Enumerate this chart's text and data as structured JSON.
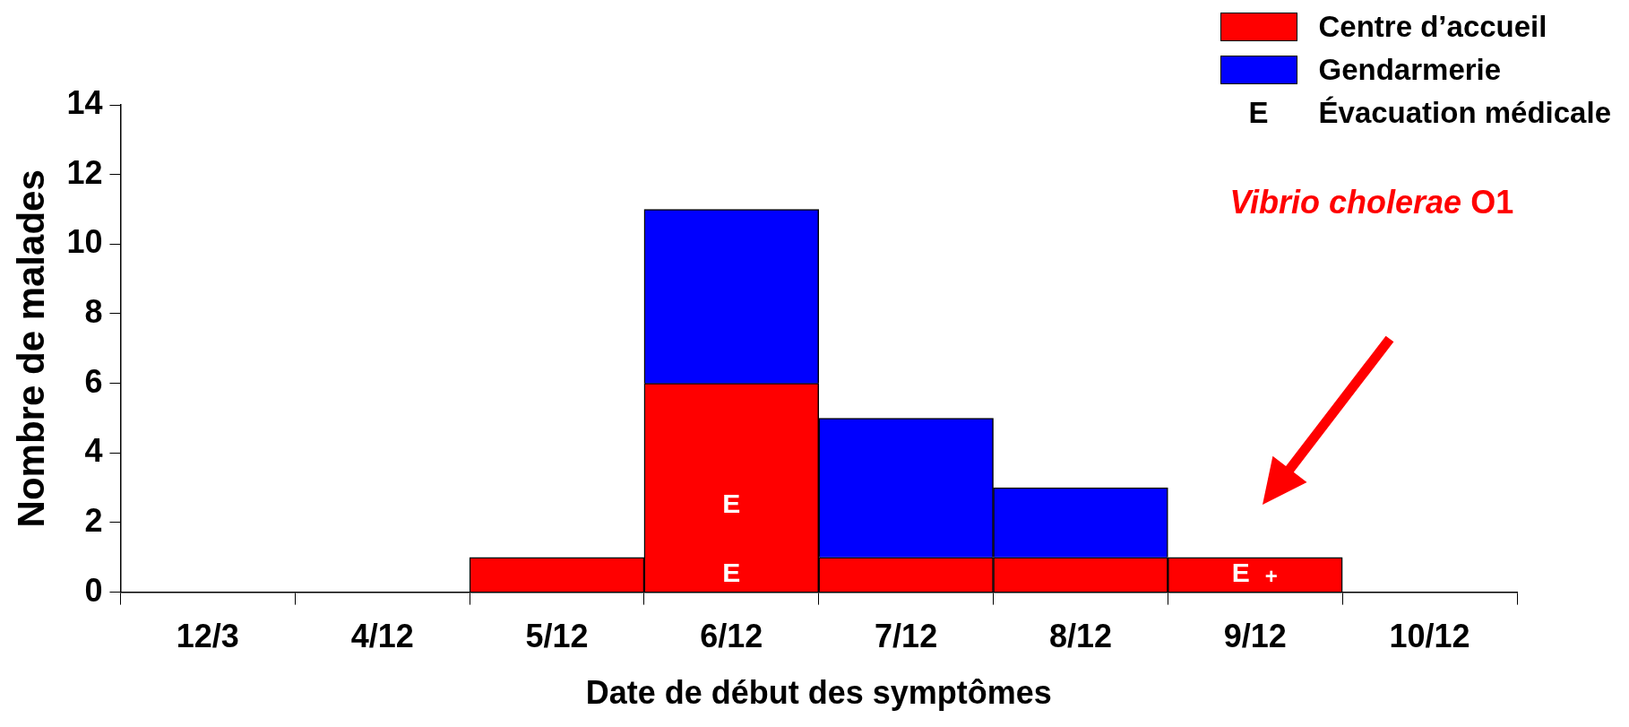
{
  "chart_data": {
    "type": "bar",
    "stacked": true,
    "xlabel": "Date de début des symptômes",
    "ylabel": "Nombre de malades",
    "categories": [
      "12/3",
      "4/12",
      "5/12",
      "6/12",
      "7/12",
      "8/12",
      "9/12",
      "10/12"
    ],
    "series": [
      {
        "name": "Centre d’accueil",
        "color": "#ff0000",
        "values": [
          0,
          0,
          1,
          6,
          1,
          1,
          1,
          0
        ]
      },
      {
        "name": "Gendarmerie",
        "color": "#0000ff",
        "values": [
          0,
          0,
          0,
          5,
          4,
          2,
          0,
          0
        ]
      }
    ],
    "ylim": [
      0,
      14
    ],
    "yticks": [
      0,
      2,
      4,
      6,
      8,
      10,
      12,
      14
    ],
    "grid": false,
    "legend": "top right",
    "annotations": [
      "E",
      "E",
      "E +",
      "Vibrio cholerae O1",
      "E Évacuation médicale"
    ]
  }
}
